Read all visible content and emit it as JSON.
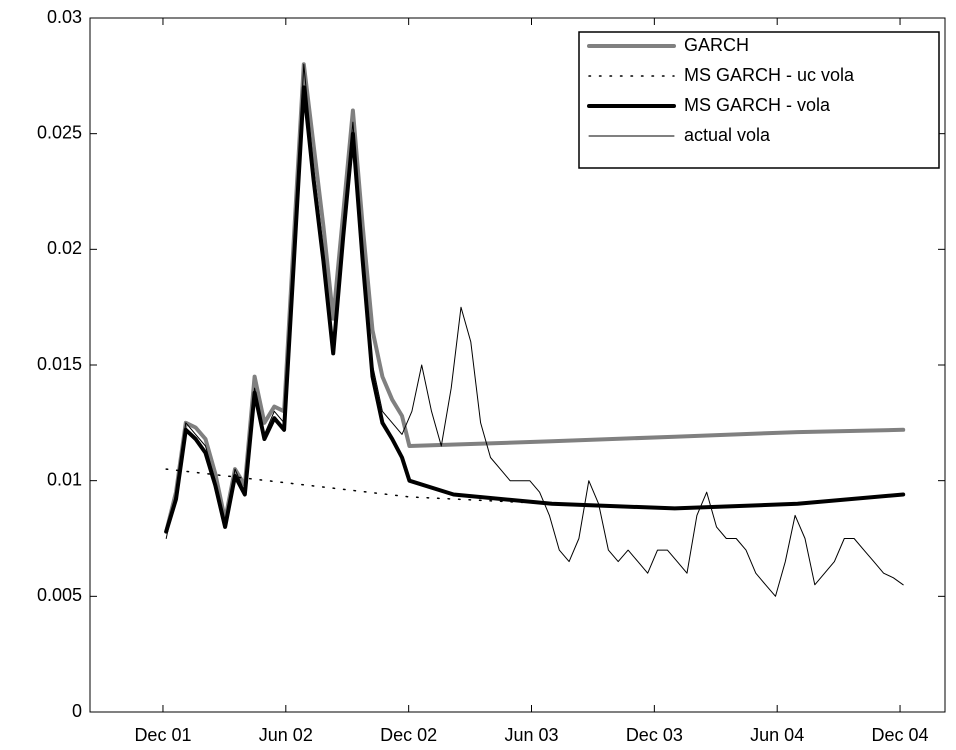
{
  "chart_data": {
    "type": "line",
    "xlim": [
      2001.62,
      2005.1
    ],
    "xticks": [
      {
        "value": 2001.917,
        "label": "Dec 01"
      },
      {
        "value": 2002.417,
        "label": "Jun 02"
      },
      {
        "value": 2002.917,
        "label": "Dec 02"
      },
      {
        "value": 2003.417,
        "label": "Jun 03"
      },
      {
        "value": 2003.917,
        "label": "Dec 03"
      },
      {
        "value": 2004.417,
        "label": "Jun 04"
      },
      {
        "value": 2004.917,
        "label": "Dec 04"
      }
    ],
    "ylim": [
      0,
      0.03
    ],
    "yticks": [
      0,
      0.005,
      0.01,
      0.015,
      0.02,
      0.025,
      0.03
    ],
    "legend": "upper right",
    "series": [
      {
        "name": "GARCH",
        "color": "#808080",
        "style": "solid",
        "width": 4,
        "x": [
          2001.93,
          2001.97,
          2002.01,
          2002.05,
          2002.09,
          2002.13,
          2002.17,
          2002.21,
          2002.25,
          2002.29,
          2002.33,
          2002.37,
          2002.41,
          2002.45,
          2002.49,
          2002.53,
          2002.57,
          2002.61,
          2002.65,
          2002.69,
          2002.73,
          2002.77,
          2002.81,
          2002.85,
          2002.89,
          2002.92,
          2003.5,
          2004.0,
          2004.5,
          2004.93
        ],
        "values": [
          0.0078,
          0.0095,
          0.0125,
          0.0123,
          0.0118,
          0.0103,
          0.0083,
          0.0105,
          0.0098,
          0.0145,
          0.0125,
          0.0132,
          0.013,
          0.0205,
          0.028,
          0.0245,
          0.021,
          0.017,
          0.0215,
          0.026,
          0.021,
          0.0165,
          0.0145,
          0.0135,
          0.0128,
          0.0115,
          0.0117,
          0.0119,
          0.0121,
          0.0122
        ]
      },
      {
        "name": "MS GARCH - uc vola",
        "color": "#000000",
        "style": "dotted",
        "width": 1.5,
        "x": [
          2001.93,
          2002.92,
          2003.5,
          2004.0,
          2004.5,
          2004.93
        ],
        "values": [
          0.0105,
          0.0093,
          0.009,
          0.0088,
          0.009,
          0.0094
        ]
      },
      {
        "name": "MS GARCH - vola",
        "color": "#000000",
        "style": "solid",
        "width": 4,
        "x": [
          2001.93,
          2001.97,
          2002.01,
          2002.05,
          2002.09,
          2002.13,
          2002.17,
          2002.21,
          2002.25,
          2002.29,
          2002.33,
          2002.37,
          2002.41,
          2002.45,
          2002.49,
          2002.53,
          2002.57,
          2002.61,
          2002.65,
          2002.69,
          2002.73,
          2002.77,
          2002.81,
          2002.85,
          2002.89,
          2002.92,
          2003.1,
          2003.5,
          2004.0,
          2004.5,
          2004.93
        ],
        "values": [
          0.0078,
          0.0092,
          0.0122,
          0.0118,
          0.0112,
          0.0098,
          0.008,
          0.0102,
          0.0094,
          0.0138,
          0.0118,
          0.0127,
          0.0122,
          0.0195,
          0.027,
          0.023,
          0.0195,
          0.0155,
          0.0205,
          0.025,
          0.0195,
          0.0145,
          0.0125,
          0.0118,
          0.011,
          0.01,
          0.0094,
          0.009,
          0.0088,
          0.009,
          0.0094
        ]
      },
      {
        "name": "actual vola",
        "color": "#000000",
        "style": "solid",
        "width": 1,
        "x": [
          2001.93,
          2001.97,
          2002.01,
          2002.05,
          2002.09,
          2002.13,
          2002.17,
          2002.21,
          2002.25,
          2002.29,
          2002.33,
          2002.37,
          2002.41,
          2002.45,
          2002.49,
          2002.53,
          2002.57,
          2002.61,
          2002.65,
          2002.69,
          2002.73,
          2002.77,
          2002.81,
          2002.85,
          2002.89,
          2002.93,
          2002.97,
          2003.01,
          2003.05,
          2003.09,
          2003.13,
          2003.17,
          2003.21,
          2003.25,
          2003.29,
          2003.33,
          2003.37,
          2003.41,
          2003.45,
          2003.49,
          2003.53,
          2003.57,
          2003.61,
          2003.65,
          2003.69,
          2003.73,
          2003.77,
          2003.81,
          2003.85,
          2003.89,
          2003.93,
          2003.97,
          2004.01,
          2004.05,
          2004.09,
          2004.13,
          2004.17,
          2004.21,
          2004.25,
          2004.29,
          2004.33,
          2004.37,
          2004.41,
          2004.45,
          2004.49,
          2004.53,
          2004.57,
          2004.61,
          2004.65,
          2004.69,
          2004.73,
          2004.77,
          2004.81,
          2004.85,
          2004.89,
          2004.93
        ],
        "values": [
          0.0075,
          0.0095,
          0.0125,
          0.012,
          0.0115,
          0.01,
          0.008,
          0.0105,
          0.0095,
          0.014,
          0.012,
          0.013,
          0.0125,
          0.02,
          0.028,
          0.0235,
          0.02,
          0.016,
          0.021,
          0.0255,
          0.02,
          0.015,
          0.013,
          0.0125,
          0.012,
          0.013,
          0.015,
          0.013,
          0.0115,
          0.014,
          0.0175,
          0.016,
          0.0125,
          0.011,
          0.0105,
          0.01,
          0.01,
          0.01,
          0.0095,
          0.0085,
          0.007,
          0.0065,
          0.0075,
          0.01,
          0.009,
          0.007,
          0.0065,
          0.007,
          0.0065,
          0.006,
          0.007,
          0.007,
          0.0065,
          0.006,
          0.0085,
          0.0095,
          0.008,
          0.0075,
          0.0075,
          0.007,
          0.006,
          0.0055,
          0.005,
          0.0065,
          0.0085,
          0.0075,
          0.0055,
          0.006,
          0.0065,
          0.0075,
          0.0075,
          0.007,
          0.0065,
          0.006,
          0.0058,
          0.0055
        ]
      }
    ]
  }
}
